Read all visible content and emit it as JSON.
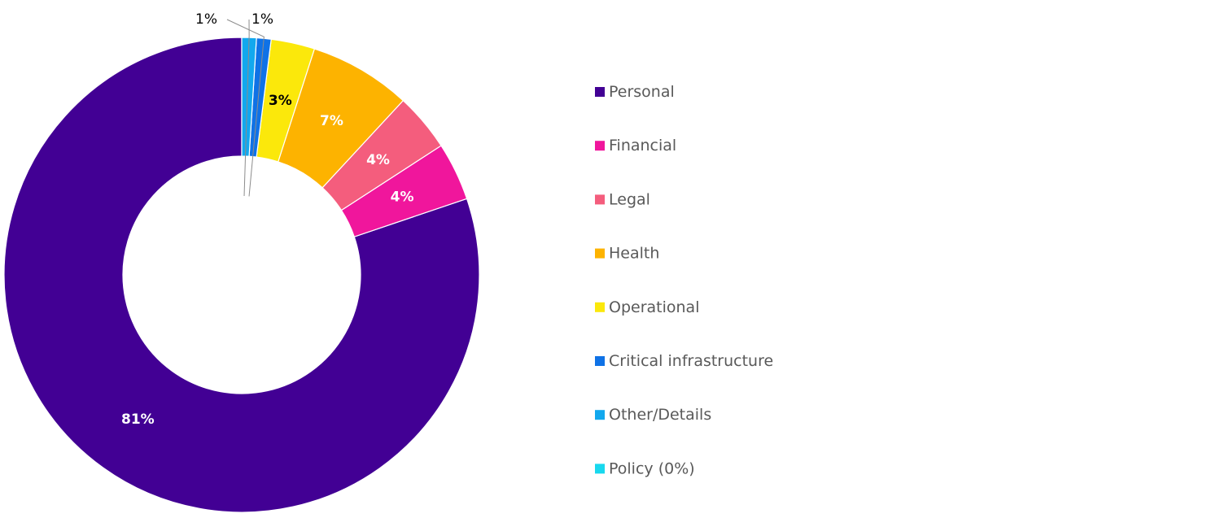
{
  "chart_data": {
    "type": "pie",
    "variant": "donut",
    "categories": [
      "Personal",
      "Financial",
      "Legal",
      "Health",
      "Operational",
      "Critical infrastructure",
      "Other/Details",
      "Policy (0%)"
    ],
    "values": [
      81,
      4,
      4,
      7,
      3,
      1,
      1,
      0
    ],
    "data_labels": [
      "81%",
      "4%",
      "4%",
      "7%",
      "3%",
      "1%",
      "1%",
      ""
    ],
    "colors": [
      "#420094",
      "#F0169C",
      "#F45D7D",
      "#FDB300",
      "#FBE80B",
      "#0F72E6",
      "#12A8EE",
      "#18D8EE"
    ],
    "label_colors": [
      "#ffffff",
      "#ffffff",
      "#ffffff",
      "#ffffff",
      "#000000",
      "#000000",
      "#000000",
      "#000000"
    ],
    "start": "top, clockwise in reverse (counter-clockwise)",
    "legend_position": "right",
    "legend_text_color": "#595959",
    "title": ""
  }
}
